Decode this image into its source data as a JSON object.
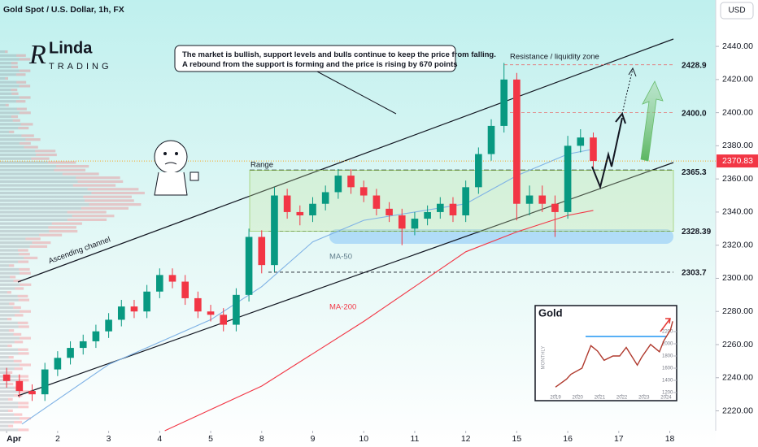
{
  "chart_data": [
    {
      "type": "candlestick",
      "title": "Gold Spot / U.S. Dollar, 1h, FX",
      "currency": "USD",
      "x": [
        0,
        0.25,
        0.5,
        0.75,
        1,
        1.25,
        1.5,
        1.75,
        2,
        2.25,
        2.5,
        2.75,
        3,
        3.25,
        3.5,
        3.75,
        4,
        4.25,
        4.5,
        4.75,
        5,
        5.25,
        5.5,
        5.75,
        6,
        6.25,
        6.5,
        6.75,
        7,
        7.25,
        7.5,
        7.75,
        8,
        8.25,
        8.5,
        8.75,
        9,
        9.25,
        9.5,
        9.75,
        10,
        10.25,
        10.5,
        10.75,
        11,
        11.25,
        11.5
      ],
      "open": [
        2242,
        2238,
        2232,
        2230,
        2245,
        2252,
        2258,
        2262,
        2268,
        2275,
        2283,
        2280,
        2292,
        2302,
        2298,
        2288,
        2280,
        2278,
        2272,
        2290,
        2325,
        2308,
        2350,
        2340,
        2338,
        2345,
        2352,
        2362,
        2355,
        2350,
        2342,
        2338,
        2330,
        2336,
        2340,
        2345,
        2338,
        2355,
        2375,
        2392,
        2420,
        2345,
        2350,
        2345,
        2340,
        2380,
        2385
      ],
      "high": [
        2246,
        2242,
        2236,
        2249,
        2256,
        2262,
        2266,
        2272,
        2279,
        2287,
        2287,
        2296,
        2306,
        2306,
        2302,
        2292,
        2284,
        2282,
        2294,
        2330,
        2329,
        2355,
        2354,
        2344,
        2349,
        2356,
        2366,
        2366,
        2359,
        2354,
        2346,
        2342,
        2340,
        2344,
        2349,
        2349,
        2359,
        2379,
        2396,
        2430,
        2424,
        2356,
        2356,
        2350,
        2386,
        2390,
        2388
      ],
      "low": [
        2234,
        2228,
        2226,
        2226,
        2241,
        2248,
        2254,
        2258,
        2264,
        2271,
        2276,
        2276,
        2288,
        2294,
        2284,
        2276,
        2274,
        2268,
        2268,
        2286,
        2303,
        2304,
        2336,
        2332,
        2334,
        2341,
        2348,
        2351,
        2346,
        2338,
        2334,
        2320,
        2326,
        2332,
        2336,
        2334,
        2334,
        2351,
        2371,
        2388,
        2335,
        2338,
        2340,
        2325,
        2336,
        2376,
        2366
      ],
      "close": [
        2238,
        2232,
        2230,
        2245,
        2252,
        2258,
        2262,
        2268,
        2275,
        2283,
        2280,
        2292,
        2302,
        2298,
        2288,
        2280,
        2278,
        2272,
        2290,
        2325,
        2308,
        2350,
        2340,
        2338,
        2345,
        2352,
        2362,
        2355,
        2350,
        2342,
        2338,
        2330,
        2336,
        2340,
        2345,
        2338,
        2355,
        2375,
        2392,
        2420,
        2345,
        2350,
        2345,
        2340,
        2380,
        2385,
        2370.83
      ],
      "up_color": "#089981",
      "down_color": "#f23645",
      "xlim": [
        -0.13,
        13.9
      ],
      "xticks": [
        {
          "value": 0,
          "label": "Apr"
        },
        {
          "value": 1,
          "label": "2"
        },
        {
          "value": 2,
          "label": "3"
        },
        {
          "value": 3,
          "label": "4"
        },
        {
          "value": 4,
          "label": "5"
        },
        {
          "value": 5,
          "label": "8"
        },
        {
          "value": 6,
          "label": "9"
        },
        {
          "value": 7,
          "label": "10"
        },
        {
          "value": 8,
          "label": "11"
        },
        {
          "value": 9,
          "label": "12"
        },
        {
          "value": 10,
          "label": "15"
        },
        {
          "value": 11,
          "label": "16"
        },
        {
          "value": 12,
          "label": "17"
        },
        {
          "value": 13,
          "label": "18"
        }
      ],
      "ylim": [
        2208,
        2468
      ],
      "yticks": [
        {
          "value": 2440,
          "label": "2440.00"
        },
        {
          "value": 2420,
          "label": "2420.00"
        },
        {
          "value": 2400,
          "label": "2400.00"
        },
        {
          "value": 2380,
          "label": "2380.00"
        },
        {
          "value": 2360,
          "label": "2360.00"
        },
        {
          "value": 2340,
          "label": "2340.00"
        },
        {
          "value": 2320,
          "label": "2320.00"
        },
        {
          "value": 2300,
          "label": "2300.00"
        },
        {
          "value": 2280,
          "label": "2280.00"
        },
        {
          "value": 2260,
          "label": "2260.00"
        },
        {
          "value": 2240,
          "label": "2240.00"
        },
        {
          "value": 2220,
          "label": "2220.00"
        }
      ],
      "levels": [
        2428.9,
        {
          "value": 2400,
          "label": "2400.0"
        },
        2365.3,
        2328.39,
        2303.7
      ],
      "series": [
        {
          "name": "MA-50",
          "color": "#7fb2e5",
          "x": [
            0.3,
            2,
            4,
            5,
            6,
            7,
            8,
            9,
            10,
            11,
            11.5
          ],
          "values": [
            2212,
            2248,
            2275,
            2295,
            2322,
            2335,
            2340,
            2345,
            2362,
            2375,
            2378
          ]
        },
        {
          "name": "MA-200",
          "color": "#f23645",
          "x": [
            3.1,
            5,
            7,
            9,
            10,
            11,
            11.5
          ],
          "values": [
            2208,
            2235,
            2274,
            2316,
            2328,
            2338,
            2341
          ]
        }
      ],
      "annotations": {
        "note": [
          "The market is bullish, support levels and bulls continue to keep the price from falling.",
          "A rebound from the support is forming and the price is rising by 670 points"
        ],
        "resistance": "Resistance / liquidity zone",
        "range": "Range",
        "channel": "Ascending channel"
      },
      "logo": {
        "name": "Linda",
        "sub": "TRADING"
      }
    },
    {
      "type": "line",
      "title": "Gold",
      "ylabel": "MONTHLY",
      "color": "#b03a2e",
      "x": [
        2019.0,
        2019.5,
        2019.7,
        2020.2,
        2020.6,
        2020.9,
        2021.2,
        2021.6,
        2021.9,
        2022.2,
        2022.7,
        2022.9,
        2023.3,
        2023.7,
        2023.9,
        2024.2,
        2024.3
      ],
      "values": [
        1290,
        1420,
        1500,
        1600,
        1970,
        1880,
        1730,
        1800,
        1800,
        1940,
        1650,
        1780,
        1990,
        1870,
        2050,
        2230,
        2370
      ],
      "xlim": [
        2018.08,
        2024.48
      ],
      "xticks": [
        2019,
        2020,
        2021,
        2022,
        2023,
        2024
      ],
      "ylim": [
        1067,
        2627
      ],
      "yticks": [
        1200,
        1400,
        1600,
        1800,
        2000,
        2200
      ]
    }
  ]
}
